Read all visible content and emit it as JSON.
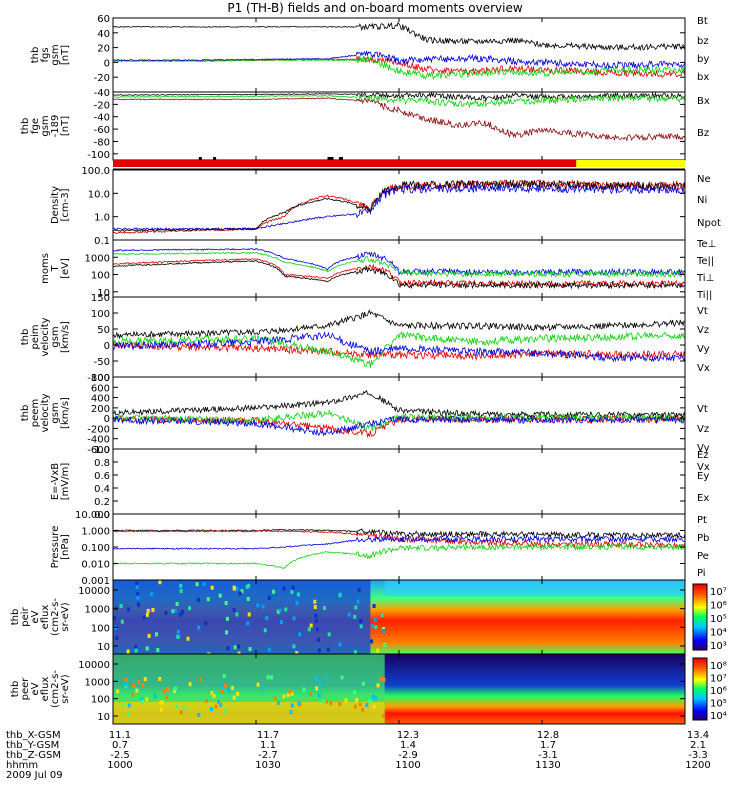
{
  "title": "P1 (TH-B) fields and on-board moments overview",
  "colors": {
    "black": "#000000",
    "red": "#e00000",
    "green": "#10d010",
    "blue": "#0000e0",
    "darkred": "#8b1010",
    "yellow": "#ffff00"
  },
  "chart_data": [
    {
      "id": "fgs",
      "type": "line",
      "ylabel": [
        "thb",
        "fgs",
        "gsm",
        "[nT]"
      ],
      "yticks": [
        60,
        40,
        20,
        0,
        -20,
        -40
      ],
      "ylim": [
        -40,
        60
      ],
      "x": [
        10.0,
        10.3,
        10.5,
        10.75,
        10.9,
        11.0,
        11.1,
        11.25,
        11.4,
        11.5,
        11.75,
        12.0
      ],
      "series": [
        {
          "name": "Bt",
          "color": "black",
          "values": [
            48,
            48,
            48,
            48,
            48,
            50,
            30,
            28,
            30,
            24,
            20,
            22
          ]
        },
        {
          "name": "bz",
          "color": "red",
          "values": [
            2,
            2,
            3,
            4,
            4,
            0,
            -10,
            -12,
            -8,
            -10,
            -14,
            -16
          ]
        },
        {
          "name": "by",
          "color": "green",
          "values": [
            2,
            2,
            3,
            3,
            3,
            -12,
            -18,
            -15,
            -12,
            -15,
            -10,
            -10
          ]
        },
        {
          "name": "bx",
          "color": "blue",
          "values": [
            3,
            3,
            4,
            5,
            12,
            2,
            4,
            6,
            2,
            0,
            -4,
            -2
          ]
        }
      ]
    },
    {
      "id": "fge",
      "type": "line",
      "ylabel": [
        "thb",
        "fge",
        "gsm",
        "-189",
        "[nT]"
      ],
      "yticks": [
        -20,
        -40,
        -60,
        -80,
        -100
      ],
      "ylim": [
        -110,
        0
      ],
      "x": [
        10.0,
        10.5,
        10.75,
        10.9,
        11.0,
        11.1,
        11.2,
        11.3,
        11.4,
        11.5,
        11.75,
        12.0
      ],
      "series": [
        {
          "name": "Bx",
          "color": "black",
          "values": [
            -5,
            -4,
            -3,
            -4,
            -6,
            -5,
            -8,
            -10,
            -6,
            -8,
            -6,
            -6
          ]
        },
        {
          "name": "",
          "color": "green",
          "values": [
            -8,
            -7,
            -6,
            -10,
            -14,
            -14,
            -20,
            -18,
            -15,
            -14,
            -10,
            -12
          ]
        },
        {
          "name": "Bz",
          "color": "darkred",
          "values": [
            -12,
            -12,
            -10,
            -16,
            -30,
            -44,
            -54,
            -50,
            -70,
            -62,
            -74,
            -72
          ]
        }
      ]
    },
    {
      "id": "moments",
      "type": "line",
      "ylabel": [
        "Density",
        "[cm-3]"
      ],
      "yticks": [
        "100.0",
        "10.0",
        "1.0",
        "0.1"
      ],
      "yscale": "log",
      "ylim": [
        0.1,
        100
      ],
      "x": [
        10.0,
        10.5,
        10.6,
        10.75,
        10.9,
        11.0,
        11.25,
        11.5,
        11.75,
        12.0
      ],
      "series": [
        {
          "name": "Ne",
          "color": "red",
          "values": [
            0.2,
            0.3,
            1,
            8,
            2,
            20,
            25,
            25,
            22,
            22
          ]
        },
        {
          "name": "Ni",
          "color": "black",
          "values": [
            0.25,
            0.3,
            1.5,
            6,
            2,
            22,
            24,
            24,
            21,
            20
          ]
        },
        {
          "name": "Npot",
          "color": "blue",
          "values": [
            0.3,
            0.3,
            0.5,
            1,
            1.5,
            15,
            16,
            16,
            15,
            14
          ]
        }
      ],
      "status_bar": {
        "colors": [
          "red",
          "yellow"
        ],
        "switch_x": 11.62
      }
    },
    {
      "id": "temps",
      "type": "line",
      "ylabel": [
        "moms",
        "T",
        "[eV]"
      ],
      "yticks": [
        "1000",
        "100",
        "10"
      ],
      "yscale": "log",
      "ylim": [
        5,
        10000
      ],
      "x": [
        10.0,
        10.5,
        10.6,
        10.75,
        10.9,
        11.0,
        11.25,
        11.5,
        12.0
      ],
      "series": [
        {
          "name": "Te⊥",
          "color": "red",
          "values": [
            400,
            800,
            100,
            60,
            300,
            35,
            30,
            30,
            30
          ]
        },
        {
          "name": "Te||",
          "color": "black",
          "values": [
            300,
            600,
            80,
            40,
            200,
            25,
            25,
            24,
            24
          ]
        },
        {
          "name": "Ti⊥",
          "color": "blue",
          "values": [
            2500,
            3000,
            800,
            200,
            1500,
            150,
            140,
            140,
            140
          ]
        },
        {
          "name": "Ti||",
          "color": "green",
          "values": [
            1500,
            1800,
            500,
            150,
            800,
            120,
            110,
            110,
            110
          ]
        }
      ]
    },
    {
      "id": "peim_v",
      "type": "line",
      "ylabel": [
        "thb",
        "peim",
        "velocity",
        "gsm",
        "[km/s]"
      ],
      "yticks": [
        150,
        100,
        50,
        0,
        -50,
        -100
      ],
      "ylim": [
        -100,
        150
      ],
      "x": [
        10.0,
        10.5,
        10.75,
        10.9,
        11.0,
        11.25,
        11.5,
        11.75,
        12.0
      ],
      "series": [
        {
          "name": "Vt",
          "color": "black",
          "values": [
            30,
            40,
            60,
            100,
            60,
            60,
            55,
            60,
            70
          ]
        },
        {
          "name": "Vz",
          "color": "red",
          "values": [
            0,
            -10,
            -20,
            -30,
            -30,
            -35,
            -25,
            -30,
            -30
          ]
        },
        {
          "name": "Vy",
          "color": "green",
          "values": [
            10,
            20,
            -20,
            -60,
            30,
            10,
            20,
            25,
            30
          ]
        },
        {
          "name": "Vx",
          "color": "blue",
          "values": [
            -5,
            10,
            30,
            -20,
            -10,
            -20,
            -25,
            -40,
            -40
          ]
        }
      ]
    },
    {
      "id": "peem_v",
      "type": "line",
      "ylabel": [
        "thb",
        "peem",
        "velocity",
        "gsm",
        "[km/s]"
      ],
      "yticks": [
        800,
        600,
        400,
        200,
        0,
        -200,
        -400,
        -600
      ],
      "ylim": [
        -600,
        800
      ],
      "x": [
        10.0,
        10.5,
        10.75,
        10.9,
        11.0,
        11.25,
        11.5,
        12.0
      ],
      "series": [
        {
          "name": "Vt",
          "color": "black",
          "values": [
            100,
            200,
            300,
            500,
            150,
            80,
            70,
            60
          ]
        },
        {
          "name": "Vz",
          "color": "red",
          "values": [
            -20,
            -50,
            -200,
            -300,
            -20,
            -20,
            -20,
            -20
          ]
        },
        {
          "name": "Vy",
          "color": "green",
          "values": [
            10,
            -50,
            100,
            -200,
            20,
            10,
            10,
            10
          ]
        },
        {
          "name": "Vx",
          "color": "blue",
          "values": [
            -30,
            -100,
            -300,
            -100,
            -20,
            -30,
            -30,
            -30
          ]
        }
      ]
    },
    {
      "id": "efield",
      "type": "line",
      "ylabel": [
        "E=-VxB",
        "[mV/m]"
      ],
      "yticks": [
        "1.0",
        "0.8",
        "0.6",
        "0.4",
        "0.2",
        "0.0"
      ],
      "ylim": [
        0,
        1
      ],
      "x": [],
      "series": [
        {
          "name": "Ez",
          "color": "red",
          "values": []
        },
        {
          "name": "Ey",
          "color": "green",
          "values": []
        },
        {
          "name": "Ex",
          "color": "blue",
          "values": []
        }
      ]
    },
    {
      "id": "pressure",
      "type": "line",
      "ylabel": [
        "Pressure",
        "[nPa]"
      ],
      "yticks": [
        "10.000",
        "1.000",
        "0.100",
        "0.010",
        "0.001"
      ],
      "yscale": "log",
      "ylim": [
        0.001,
        10
      ],
      "x": [
        10.0,
        10.5,
        10.6,
        10.75,
        10.9,
        11.0,
        11.25,
        11.5,
        11.75,
        12.0
      ],
      "series": [
        {
          "name": "Pt",
          "color": "black",
          "values": [
            1.0,
            1.0,
            1.1,
            1.0,
            0.8,
            0.6,
            0.6,
            0.55,
            0.5,
            0.5
          ]
        },
        {
          "name": "Pb",
          "color": "red",
          "values": [
            0.9,
            0.9,
            0.9,
            0.8,
            0.5,
            0.3,
            0.2,
            0.15,
            0.15,
            0.12
          ]
        },
        {
          "name": "Pe",
          "color": "green",
          "values": [
            0.01,
            0.01,
            0.005,
            0.05,
            0.03,
            0.08,
            0.1,
            0.1,
            0.1,
            0.1
          ]
        },
        {
          "name": "Pi",
          "color": "blue",
          "values": [
            0.08,
            0.08,
            0.1,
            0.15,
            0.3,
            0.3,
            0.3,
            0.3,
            0.3,
            0.3
          ]
        }
      ]
    },
    {
      "id": "peir",
      "type": "heatmap",
      "ylabel": [
        "thb",
        "peir",
        "eV",
        "eflux",
        "(cm2-s-",
        "sr-eV)"
      ],
      "yticks": [
        "10000",
        "1000",
        "100",
        "10"
      ],
      "yscale": "log",
      "colorbar_ticks": [
        "10⁷",
        "10⁶",
        "10⁵",
        "10⁴",
        "10³"
      ]
    },
    {
      "id": "peer",
      "type": "heatmap",
      "ylabel": [
        "thb",
        "peer",
        "eV",
        "eflux",
        "(cm2-s-",
        "sr-eV)"
      ],
      "yticks": [
        "10000",
        "1000",
        "100",
        "10"
      ],
      "yscale": "log",
      "colorbar_ticks": [
        "10⁸",
        "10⁷",
        "10⁶",
        "10⁵",
        "10⁴"
      ]
    }
  ],
  "x_axis": {
    "row_labels": [
      "thb_X-GSM",
      "thb_Y-GSM",
      "thb_Z-GSM",
      "hhmm",
      "2009 Jul 09"
    ],
    "columns": [
      {
        "x_gsm": "11.1",
        "y_gsm": "0.7",
        "z_gsm": "-2.5",
        "hhmm": "1000"
      },
      {
        "x_gsm": "11.7",
        "y_gsm": "1.1",
        "z_gsm": "-2.7",
        "hhmm": "1030"
      },
      {
        "x_gsm": "12.3",
        "y_gsm": "1.4",
        "z_gsm": "-2.9",
        "hhmm": "1100"
      },
      {
        "x_gsm": "12.8",
        "y_gsm": "1.7",
        "z_gsm": "-3.1",
        "hhmm": "1130"
      },
      {
        "x_gsm": "13.4",
        "y_gsm": "2.1",
        "z_gsm": "-3.3",
        "hhmm": "1200"
      }
    ]
  }
}
